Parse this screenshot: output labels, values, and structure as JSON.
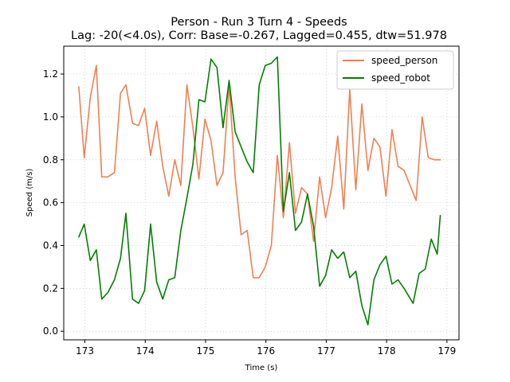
{
  "chart_data": {
    "type": "line",
    "title": "Person - Run 3 Turn 4 - Speeds",
    "subtitle": "Lag: -20(<4.0s), Corr: Base=-0.267, Lagged=0.455, dtw=51.978",
    "xlabel": "Time (s)",
    "ylabel": "Speed (m/s)",
    "xlim": [
      172.65,
      179.2
    ],
    "ylim": [
      -0.04,
      1.33
    ],
    "xticks": [
      173,
      174,
      175,
      176,
      177,
      178,
      179
    ],
    "yticks": [
      0.0,
      0.2,
      0.4,
      0.6,
      0.8,
      1.0,
      1.2
    ],
    "xtick_labels": [
      "173",
      "174",
      "175",
      "176",
      "177",
      "178",
      "179"
    ],
    "ytick_labels": [
      "0.0",
      "0.2",
      "0.4",
      "0.6",
      "0.8",
      "1.0",
      "1.2"
    ],
    "grid": true,
    "legend_position": "top-right",
    "series": [
      {
        "name": "speed_person",
        "color": "#f08050",
        "x": [
          172.9,
          172.99,
          173.09,
          173.19,
          173.28,
          173.38,
          173.49,
          173.59,
          173.68,
          173.79,
          173.89,
          173.99,
          174.09,
          174.19,
          174.29,
          174.39,
          174.49,
          174.59,
          174.69,
          174.79,
          174.89,
          174.99,
          175.09,
          175.19,
          175.29,
          175.39,
          175.49,
          175.59,
          175.69,
          175.79,
          175.89,
          175.99,
          176.09,
          176.19,
          176.29,
          176.39,
          176.49,
          176.59,
          176.69,
          176.79,
          176.89,
          176.99,
          177.09,
          177.19,
          177.29,
          177.39,
          177.49,
          177.59,
          177.69,
          177.79,
          177.89,
          177.99,
          178.09,
          178.19,
          178.29,
          178.49,
          178.59,
          178.69,
          178.79,
          178.89
        ],
        "y": [
          1.14,
          0.81,
          1.09,
          1.24,
          0.72,
          0.72,
          0.74,
          1.11,
          1.15,
          0.97,
          0.96,
          1.04,
          0.82,
          0.98,
          0.77,
          0.63,
          0.8,
          0.68,
          1.15,
          0.95,
          0.71,
          0.99,
          0.89,
          0.68,
          0.74,
          1.15,
          0.72,
          0.45,
          0.47,
          0.25,
          0.25,
          0.3,
          0.4,
          0.82,
          0.53,
          0.88,
          0.55,
          0.67,
          0.64,
          0.42,
          0.72,
          0.53,
          0.67,
          0.91,
          0.57,
          1.13,
          0.66,
          1.06,
          0.75,
          0.9,
          0.86,
          0.63,
          0.94,
          0.77,
          0.75,
          0.61,
          1.0,
          0.81,
          0.8,
          0.8
        ]
      },
      {
        "name": "speed_robot",
        "color": "#008000",
        "x": [
          172.9,
          172.99,
          173.09,
          173.19,
          173.28,
          173.38,
          173.49,
          173.59,
          173.68,
          173.79,
          173.89,
          173.99,
          174.09,
          174.19,
          174.29,
          174.39,
          174.49,
          174.59,
          174.69,
          174.79,
          174.89,
          174.99,
          175.09,
          175.19,
          175.29,
          175.39,
          175.49,
          175.59,
          175.69,
          175.79,
          175.89,
          175.99,
          176.09,
          176.19,
          176.29,
          176.39,
          176.49,
          176.59,
          176.69,
          176.79,
          176.89,
          176.99,
          177.09,
          177.19,
          177.29,
          177.39,
          177.49,
          177.59,
          177.69,
          177.79,
          177.89,
          177.99,
          178.09,
          178.19,
          178.29,
          178.44,
          178.54,
          178.64,
          178.74,
          178.84,
          178.89
        ],
        "y": [
          0.44,
          0.5,
          0.33,
          0.38,
          0.15,
          0.18,
          0.24,
          0.34,
          0.55,
          0.15,
          0.13,
          0.19,
          0.5,
          0.23,
          0.15,
          0.24,
          0.25,
          0.47,
          0.62,
          0.78,
          1.08,
          1.07,
          1.27,
          1.23,
          0.95,
          1.17,
          0.93,
          0.86,
          0.79,
          0.74,
          1.15,
          1.24,
          1.25,
          1.28,
          0.56,
          0.74,
          0.47,
          0.51,
          0.64,
          0.49,
          0.21,
          0.26,
          0.38,
          0.34,
          0.37,
          0.25,
          0.28,
          0.12,
          0.03,
          0.24,
          0.31,
          0.35,
          0.22,
          0.24,
          0.2,
          0.13,
          0.27,
          0.29,
          0.43,
          0.36,
          0.54
        ]
      }
    ]
  }
}
